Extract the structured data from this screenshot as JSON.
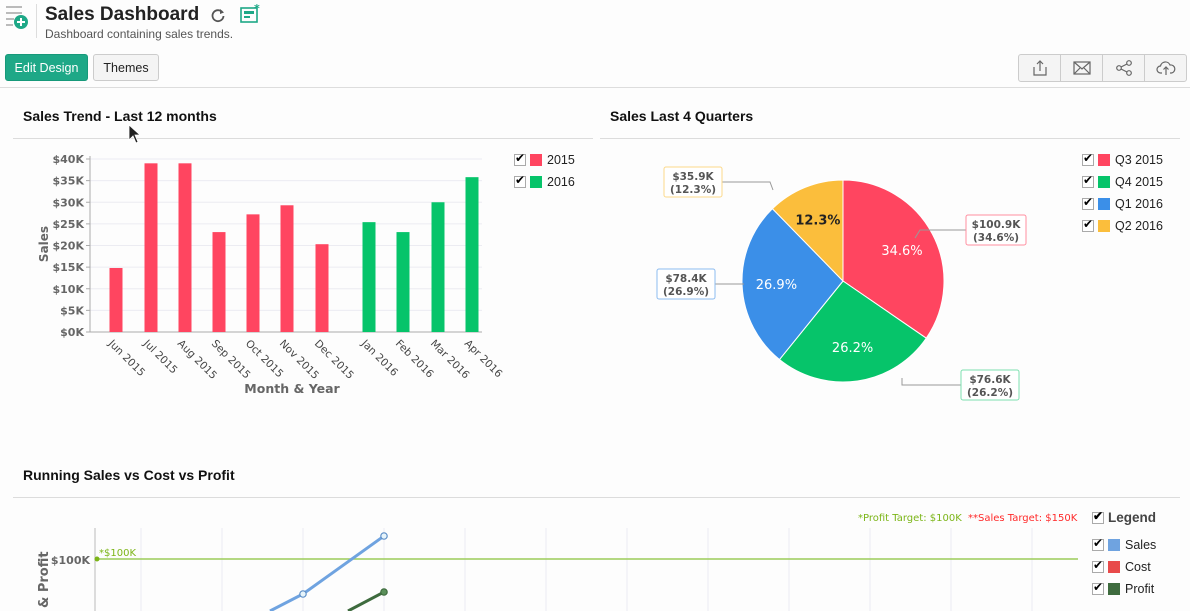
{
  "header": {
    "title": "Sales Dashboard",
    "subtitle": "Dashboard containing sales trends.",
    "icons": [
      "dashboard-add-icon",
      "refresh-icon",
      "new-widget-icon"
    ]
  },
  "toolbar": {
    "edit_design_label": "Edit Design",
    "themes_label": "Themes",
    "actions": [
      {
        "name": "export",
        "icon": "export-icon"
      },
      {
        "name": "email",
        "icon": "mail-icon"
      },
      {
        "name": "share",
        "icon": "share-icon"
      },
      {
        "name": "publish",
        "icon": "cloud-upload-icon"
      }
    ]
  },
  "colors": {
    "accent": "#1ea887",
    "y2015": "#ff4560",
    "y2016": "#06c46a",
    "q3_2015": "#ff4560",
    "q4_2015": "#06c46a",
    "q1_2016": "#3b8fe8",
    "q2_2016": "#fbbe3c",
    "sales_line": "#6fa3e0",
    "cost_line": "#e84a4a",
    "profit_line": "#3e6b3e",
    "profit_target": "#7cb518",
    "sales_target": "#ff2a2a"
  },
  "panels": {
    "bar": {
      "title": "Sales Trend - Last 12 months"
    },
    "pie": {
      "title": "Sales Last 4 Quarters"
    },
    "line": {
      "title": "Running Sales vs Cost vs Profit"
    }
  },
  "chart_data": [
    {
      "type": "bar",
      "title": "Sales Trend - Last 12 months",
      "xlabel": "Month & Year",
      "ylabel": "Sales",
      "ylim": [
        0,
        40000
      ],
      "yticks": [
        "$0K",
        "$5K",
        "$10K",
        "$15K",
        "$20K",
        "$25K",
        "$30K",
        "$35K",
        "$40K"
      ],
      "grid": true,
      "legend_position": "top-right",
      "categories": [
        "Jun 2015",
        "Jul 2015",
        "Aug 2015",
        "Sep 2015",
        "Oct 2015",
        "Nov 2015",
        "Dec 2015",
        "Jan 2016",
        "Feb 2016",
        "Mar 2016",
        "Apr 2016"
      ],
      "series": [
        {
          "name": "2015",
          "values": [
            14800,
            39000,
            39000,
            23100,
            27200,
            29300,
            20300,
            null,
            null,
            null,
            null
          ]
        },
        {
          "name": "2016",
          "values": [
            null,
            null,
            null,
            null,
            null,
            null,
            null,
            25400,
            23100,
            30000,
            35800
          ]
        }
      ]
    },
    {
      "type": "pie",
      "title": "Sales Last 4 Quarters",
      "legend_position": "top-right",
      "slices": [
        {
          "label": "Q3 2015",
          "value": 100.9,
          "display": "$100.9K",
          "percent": "34.6%"
        },
        {
          "label": "Q4 2015",
          "value": 76.6,
          "display": "$76.6K",
          "percent": "26.2%"
        },
        {
          "label": "Q1 2016",
          "value": 78.4,
          "display": "$78.4K",
          "percent": "26.9%"
        },
        {
          "label": "Q2 2016",
          "value": 35.9,
          "display": "$35.9K",
          "percent": "12.3%"
        }
      ]
    },
    {
      "type": "line",
      "title": "Running Sales vs Cost vs Profit",
      "ylabel": "& Profit",
      "ytick_visible": "$100K",
      "annotations": {
        "profit_target_marker": "*$100K",
        "profit_target_text": "*Profit Target: $100K",
        "sales_target_text": "**Sales Target: $150K"
      },
      "legend_title": "Legend",
      "legend_position": "right",
      "series": [
        {
          "name": "Sales",
          "visible_points": [
            {
              "x": 4,
              "y": 78000
            },
            {
              "x": 5,
              "y": 110000
            }
          ]
        },
        {
          "name": "Cost",
          "visible_points": []
        },
        {
          "name": "Profit",
          "visible_points": [
            {
              "x": 5,
              "y": 78000
            }
          ]
        }
      ]
    }
  ]
}
